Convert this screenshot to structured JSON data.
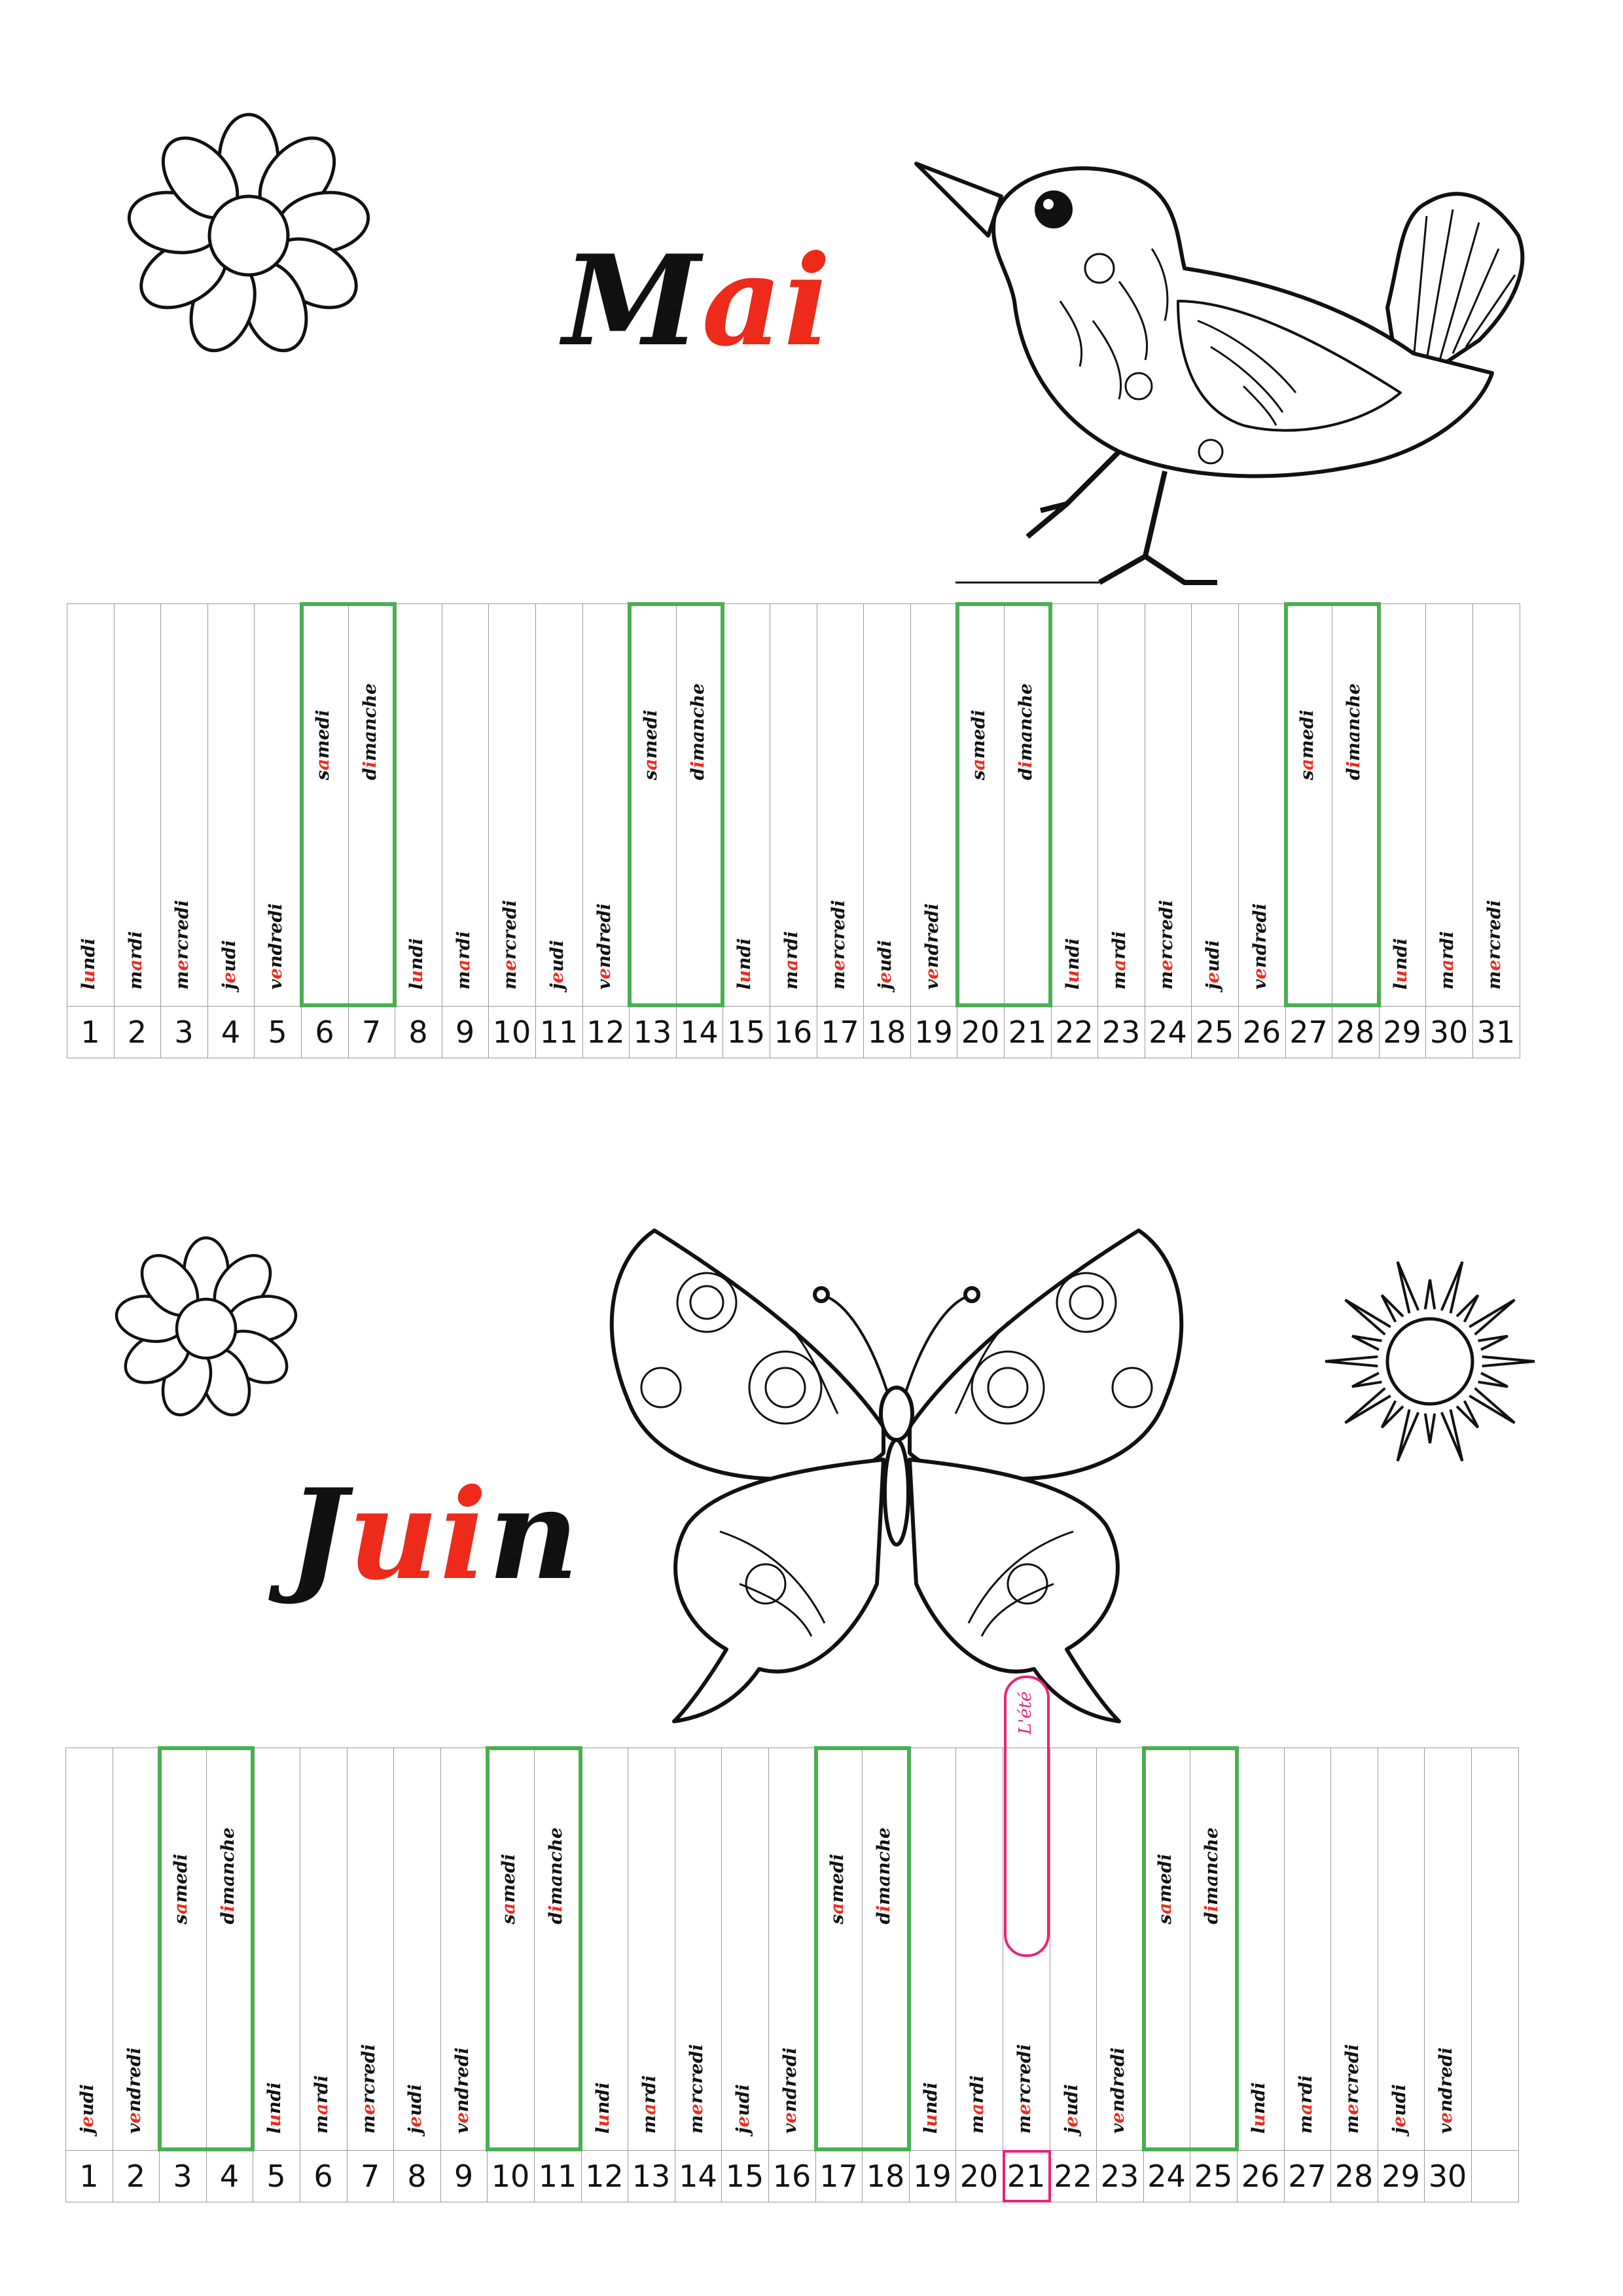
{
  "months": [
    {
      "id": "mai",
      "title_black": "M",
      "title_red": "ai",
      "days": [
        [
          "l",
          "u",
          "ndi"
        ],
        [
          "m",
          "a",
          "rdi"
        ],
        [
          "m",
          "e",
          "rcredi"
        ],
        [
          "j",
          "e",
          "udi"
        ],
        [
          "v",
          "e",
          "ndredi"
        ],
        [
          "s",
          "a",
          "medi"
        ],
        [
          "d",
          "i",
          "manche"
        ],
        [
          "l",
          "u",
          "ndi"
        ],
        [
          "m",
          "a",
          "rdi"
        ],
        [
          "m",
          "e",
          "rcredi"
        ],
        [
          "j",
          "e",
          "udi"
        ],
        [
          "v",
          "e",
          "ndredi"
        ],
        [
          "s",
          "a",
          "medi"
        ],
        [
          "d",
          "i",
          "manche"
        ],
        [
          "l",
          "u",
          "ndi"
        ],
        [
          "m",
          "a",
          "rdi"
        ],
        [
          "m",
          "e",
          "rcredi"
        ],
        [
          "j",
          "e",
          "udi"
        ],
        [
          "v",
          "e",
          "ndredi"
        ],
        [
          "s",
          "a",
          "medi"
        ],
        [
          "d",
          "i",
          "manche"
        ],
        [
          "l",
          "u",
          "ndi"
        ],
        [
          "m",
          "a",
          "rdi"
        ],
        [
          "m",
          "e",
          "rcredi"
        ],
        [
          "j",
          "e",
          "udi"
        ],
        [
          "v",
          "e",
          "ndredi"
        ],
        [
          "s",
          "a",
          "medi"
        ],
        [
          "d",
          "i",
          "manche"
        ],
        [
          "l",
          "u",
          "ndi"
        ],
        [
          "m",
          "a",
          "rdi"
        ],
        [
          "m",
          "e",
          "rcredi"
        ]
      ],
      "numbers": [
        "1",
        "2",
        "3",
        "4",
        "5",
        "6",
        "7",
        "8",
        "9",
        "10",
        "11",
        "12",
        "13",
        "14",
        "15",
        "16",
        "17",
        "18",
        "19",
        "20",
        "21",
        "22",
        "23",
        "24",
        "25",
        "26",
        "27",
        "28",
        "29",
        "30",
        "31"
      ]
    },
    {
      "id": "juin",
      "title_black_1": "J",
      "title_red": "ui",
      "title_black_2": "n",
      "days": [
        [
          "j",
          "e",
          "udi"
        ],
        [
          "v",
          "e",
          "ndredi"
        ],
        [
          "s",
          "a",
          "medi"
        ],
        [
          "d",
          "i",
          "manche"
        ],
        [
          "l",
          "u",
          "ndi"
        ],
        [
          "m",
          "a",
          "rdi"
        ],
        [
          "m",
          "e",
          "rcredi"
        ],
        [
          "j",
          "e",
          "udi"
        ],
        [
          "v",
          "e",
          "ndredi"
        ],
        [
          "s",
          "a",
          "medi"
        ],
        [
          "d",
          "i",
          "manche"
        ],
        [
          "l",
          "u",
          "ndi"
        ],
        [
          "m",
          "a",
          "rdi"
        ],
        [
          "m",
          "e",
          "rcredi"
        ],
        [
          "j",
          "e",
          "udi"
        ],
        [
          "v",
          "e",
          "ndredi"
        ],
        [
          "s",
          "a",
          "medi"
        ],
        [
          "d",
          "i",
          "manche"
        ],
        [
          "l",
          "u",
          "ndi"
        ],
        [
          "m",
          "a",
          "rdi"
        ],
        [
          "m",
          "e",
          "rcredi"
        ],
        [
          "j",
          "e",
          "udi"
        ],
        [
          "v",
          "e",
          "ndredi"
        ],
        [
          "s",
          "a",
          "medi"
        ],
        [
          "d",
          "i",
          "manche"
        ],
        [
          "l",
          "u",
          "ndi"
        ],
        [
          "m",
          "a",
          "rdi"
        ],
        [
          "m",
          "e",
          "rcredi"
        ],
        [
          "j",
          "e",
          "udi"
        ],
        [
          "v",
          "e",
          "ndredi"
        ]
      ],
      "numbers": [
        "1",
        "2",
        "3",
        "4",
        "5",
        "6",
        "7",
        "8",
        "9",
        "10",
        "11",
        "12",
        "13",
        "14",
        "15",
        "16",
        "17",
        "18",
        "19",
        "20",
        "21",
        "22",
        "23",
        "24",
        "25",
        "26",
        "27",
        "28",
        "29",
        "30"
      ],
      "season_label": "L'été",
      "season_day": "21"
    }
  ],
  "colors": {
    "accent_red": "#ee2a1b",
    "weekend_green": "#4aaf51",
    "season_pink": "#e8237a",
    "ink": "#111111"
  },
  "illustrations": [
    "flower-icon",
    "bird-illustration",
    "butterfly-illustration",
    "sun-icon"
  ]
}
